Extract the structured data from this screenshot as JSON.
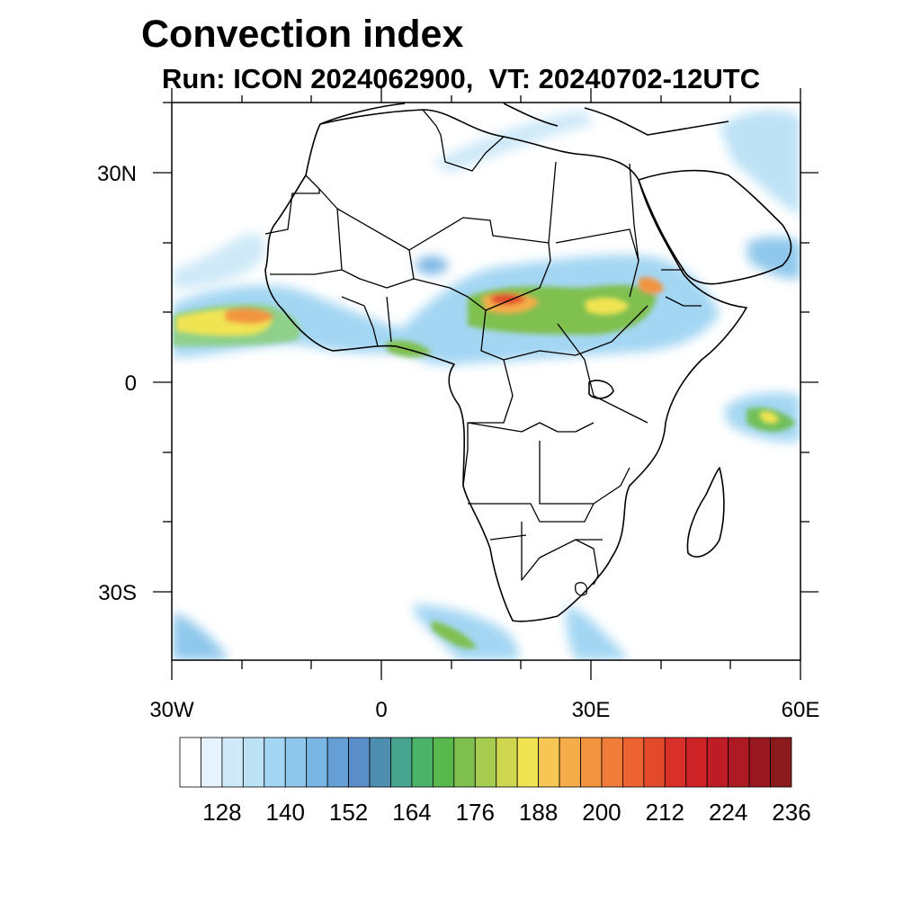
{
  "title": "Convection index",
  "subtitle": "Run: ICON 2024062900,  VT: 20240702-12UTC",
  "axes": {
    "lon_ticks": [
      "30W",
      "0",
      "30E",
      "60E"
    ],
    "lat_ticks": [
      "30N",
      "0",
      "30S"
    ]
  },
  "colorbar": {
    "labels": [
      "128",
      "140",
      "152",
      "164",
      "176",
      "188",
      "200",
      "212",
      "224",
      "236"
    ],
    "colors": [
      "#ffffff",
      "#e6f3fc",
      "#cfe9f8",
      "#bde2f6",
      "#a3d6f3",
      "#8fc8ec",
      "#7ab6e4",
      "#669fd6",
      "#5a8ec8",
      "#4d8dad",
      "#47a48f",
      "#4bb26a",
      "#57b84d",
      "#7fc04f",
      "#a6cd4f",
      "#cfd64f",
      "#f1e452",
      "#f8c654",
      "#f4ad4a",
      "#f39441",
      "#f07c39",
      "#ec6230",
      "#e24a2b",
      "#d93029",
      "#cd2327",
      "#bf1d25",
      "#ad1a23",
      "#9a1820",
      "#8a1a1c"
    ]
  }
}
